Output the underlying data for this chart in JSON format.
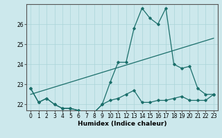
{
  "xlabel": "Humidex (Indice chaleur)",
  "background_color": "#cce8ec",
  "grid_color": "#aad4d8",
  "line_color": "#1a6e6a",
  "x_values": [
    0,
    1,
    2,
    3,
    4,
    5,
    6,
    7,
    8,
    9,
    10,
    11,
    12,
    13,
    14,
    15,
    16,
    17,
    18,
    19,
    20,
    21,
    22,
    23
  ],
  "line1": [
    22.8,
    22.1,
    22.3,
    22.0,
    21.8,
    21.8,
    21.7,
    21.6,
    21.6,
    22.0,
    23.1,
    24.1,
    24.1,
    25.8,
    26.8,
    26.3,
    26.0,
    26.8,
    24.0,
    23.8,
    23.9,
    22.8,
    22.5,
    22.5
  ],
  "line2": [
    22.8,
    22.1,
    22.3,
    22.0,
    21.8,
    21.8,
    21.7,
    21.6,
    21.6,
    22.0,
    22.2,
    22.3,
    22.5,
    22.7,
    22.1,
    22.1,
    22.2,
    22.2,
    22.3,
    22.4,
    22.2,
    22.2,
    22.2,
    22.5
  ],
  "line3_x": [
    0,
    23
  ],
  "line3_y": [
    22.5,
    25.3
  ],
  "ylim": [
    21.7,
    27.0
  ],
  "yticks": [
    22,
    23,
    24,
    25,
    26
  ],
  "xlim": [
    -0.5,
    23.5
  ]
}
